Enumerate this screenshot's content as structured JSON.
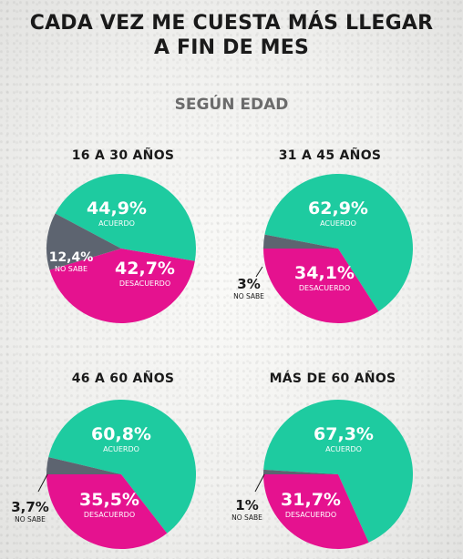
{
  "title_line1": "CADA VEZ ME CUESTA MÁS LLEGAR",
  "title_line2": "A FIN DE MES",
  "subtitle": "SEGÚN EDAD",
  "colors": {
    "acuerdo": "#1ecba0",
    "desacuerdo": "#e5128f",
    "no_sabe": "#5d6470"
  },
  "chart_data": [
    {
      "type": "pie",
      "title": "16 A 30 AÑOS",
      "slices": [
        {
          "label": "ACUERDO",
          "value": 44.9,
          "value_text": "44,9%",
          "color": "#1ecba0"
        },
        {
          "label": "DESACUERDO",
          "value": 42.7,
          "value_text": "42,7%",
          "color": "#e5128f"
        },
        {
          "label": "NO SABE",
          "value": 12.4,
          "value_text": "12,4%",
          "color": "#5d6470"
        }
      ]
    },
    {
      "type": "pie",
      "title": "31 A 45 AÑOS",
      "slices": [
        {
          "label": "ACUERDO",
          "value": 62.9,
          "value_text": "62,9%",
          "color": "#1ecba0"
        },
        {
          "label": "DESACUERDO",
          "value": 34.1,
          "value_text": "34,1%",
          "color": "#e5128f"
        },
        {
          "label": "NO SABE",
          "value": 3,
          "value_text": "3%",
          "color": "#5d6470"
        }
      ]
    },
    {
      "type": "pie",
      "title": "46 A 60 AÑOS",
      "slices": [
        {
          "label": "ACUERDO",
          "value": 60.8,
          "value_text": "60,8%",
          "color": "#1ecba0"
        },
        {
          "label": "DESACUERDO",
          "value": 35.5,
          "value_text": "35,5%",
          "color": "#e5128f"
        },
        {
          "label": "NO SABE",
          "value": 3.7,
          "value_text": "3,7%",
          "color": "#5d6470"
        }
      ]
    },
    {
      "type": "pie",
      "title": "MÁS DE 60 AÑOS",
      "slices": [
        {
          "label": "ACUERDO",
          "value": 67.3,
          "value_text": "67,3%",
          "color": "#1ecba0"
        },
        {
          "label": "DESACUERDO",
          "value": 31.7,
          "value_text": "31,7%",
          "color": "#e5128f"
        },
        {
          "label": "NO SABE",
          "value": 1,
          "value_text": "1%",
          "color": "#5d6470"
        }
      ]
    }
  ]
}
